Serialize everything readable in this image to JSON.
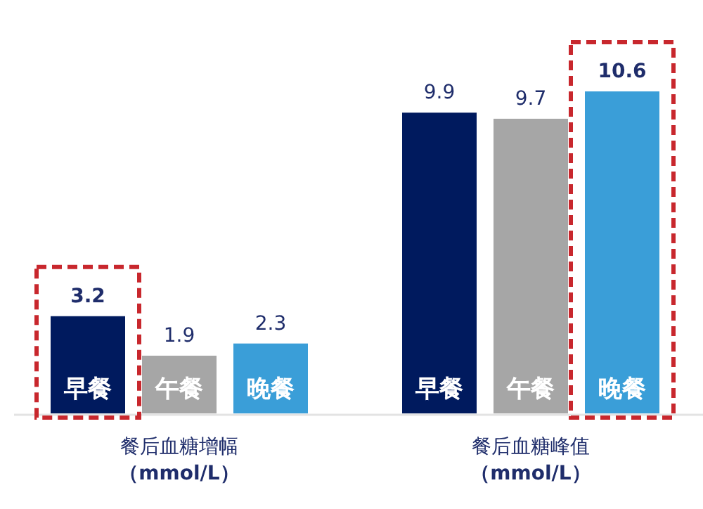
{
  "chart_data": {
    "type": "bar",
    "categories": [
      "早餐",
      "午餐",
      "晚餐",
      "早餐",
      "午餐",
      "晚餐"
    ],
    "values": [
      3.2,
      1.9,
      2.3,
      9.9,
      9.7,
      10.6
    ],
    "colors": [
      "#001a5e",
      "#a6a6a6",
      "#3a9ed8",
      "#001a5e",
      "#a6a6a6",
      "#3a9ed8"
    ],
    "data_labels": true,
    "annotations": [
      "餐后血糖增幅",
      "（mmol/L）",
      "餐后血糖峰值",
      "（mmol/L）"
    ]
  }
}
